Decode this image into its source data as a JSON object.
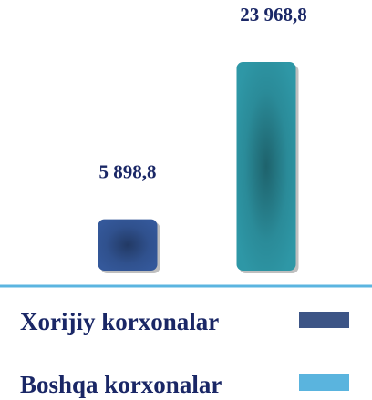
{
  "chart_data": {
    "type": "bar",
    "categories": [
      "Xorijiy korxonalar",
      "Boshqa korxonalar"
    ],
    "values": [
      5898.8,
      23968.8
    ],
    "value_labels": [
      "5 898,8",
      "23 968,8"
    ],
    "colors": [
      "#34589a",
      "#2e97a6"
    ],
    "legend_colors": [
      "#3d5586",
      "#5ab4de"
    ]
  }
}
